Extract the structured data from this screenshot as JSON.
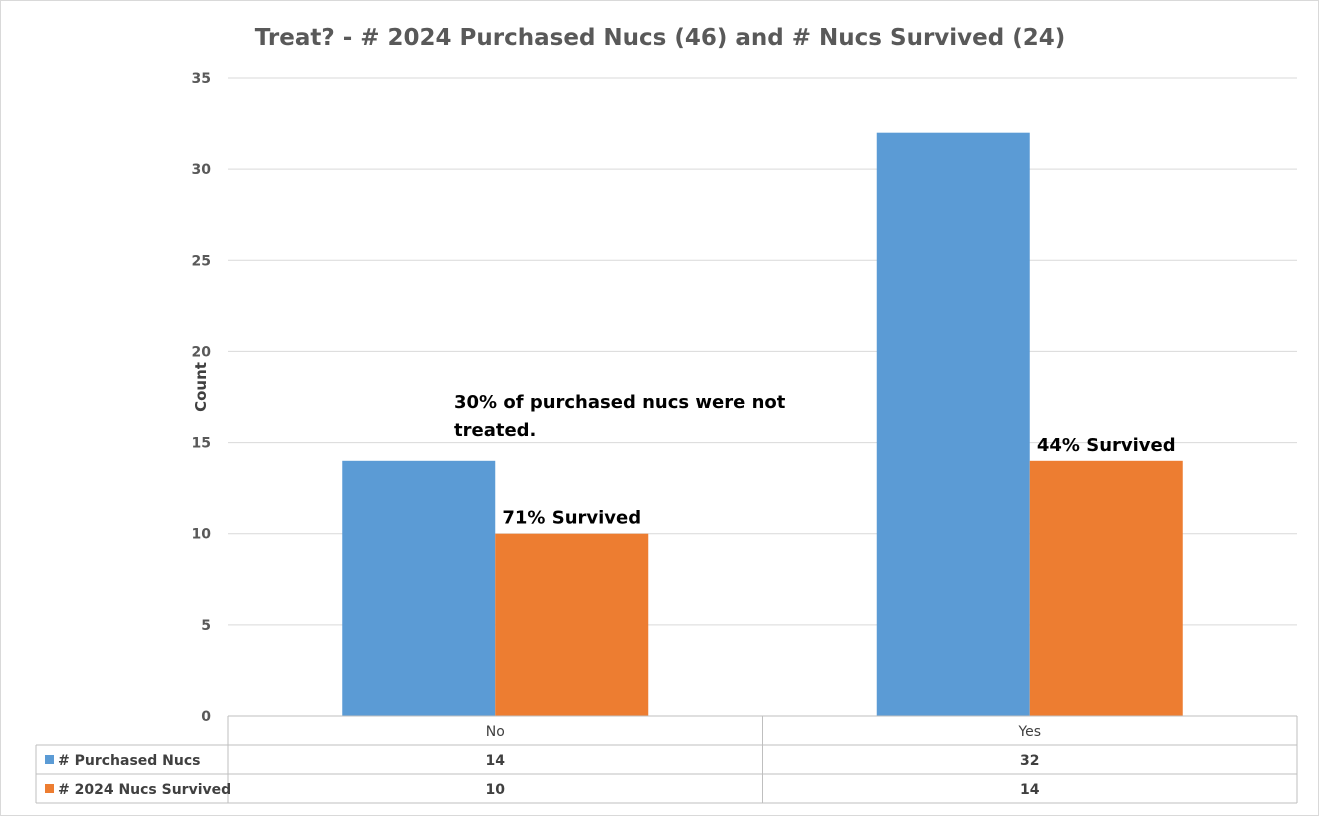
{
  "chart_data": {
    "type": "bar",
    "title": "Treat? - # 2024 Purchased Nucs (46) and # Nucs Survived (24)",
    "ylabel": "Count",
    "xlabel": "",
    "ylim": [
      0,
      35
    ],
    "yticks": [
      0,
      5,
      10,
      15,
      20,
      25,
      30,
      35
    ],
    "grid": true,
    "legend": "data-table",
    "categories": [
      "No",
      "Yes"
    ],
    "series": [
      {
        "name": "# Purchased Nucs",
        "values": [
          14,
          32
        ],
        "color": "#5b9bd5"
      },
      {
        "name": "# 2024 Nucs Survived",
        "values": [
          10,
          14
        ],
        "color": "#ed7d31"
      }
    ],
    "data_labels": [
      "71% Survived",
      "44% Survived"
    ],
    "annotation_lines": [
      "30% of purchased nucs were not",
      "treated."
    ]
  }
}
